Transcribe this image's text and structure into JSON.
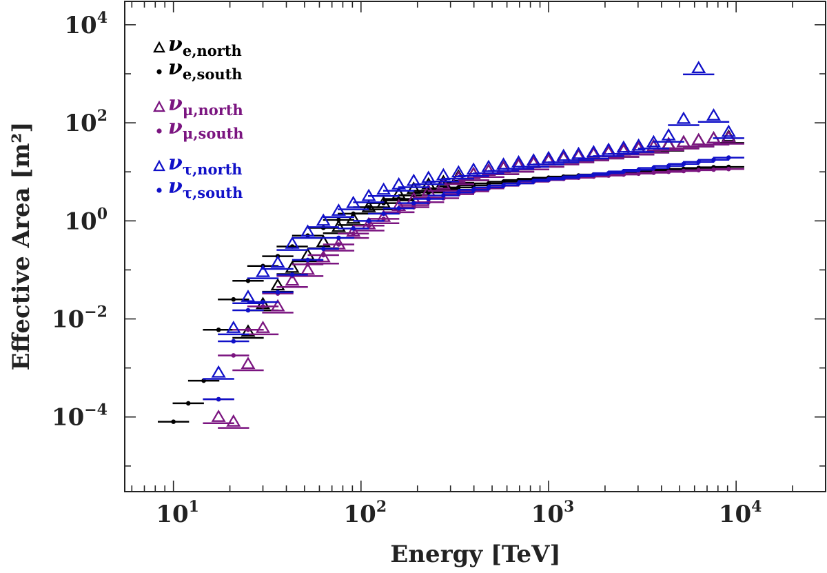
{
  "chart_data": {
    "type": "scatter",
    "title": "",
    "xlabel": "Energy [TeV]",
    "ylabel": "Effective Area [m²]",
    "xscale": "log",
    "yscale": "log",
    "xlim": [
      5.5,
      30000
    ],
    "ylim": [
      3e-06,
      30000
    ],
    "grid": false,
    "legend_position": "top-left",
    "x_ticks": [
      {
        "value": 10,
        "base": "10",
        "exp": "1"
      },
      {
        "value": 100,
        "base": "10",
        "exp": "2"
      },
      {
        "value": 1000,
        "base": "10",
        "exp": "3"
      },
      {
        "value": 10000,
        "base": "10",
        "exp": "4"
      }
    ],
    "y_ticks": [
      {
        "value": 0.0001,
        "base": "10",
        "exp": "−4"
      },
      {
        "value": 0.01,
        "base": "10",
        "exp": "−2"
      },
      {
        "value": 1,
        "base": "10",
        "exp": "0"
      },
      {
        "value": 100,
        "base": "10",
        "exp": "2"
      },
      {
        "value": 10000,
        "base": "10",
        "exp": "4"
      }
    ],
    "series": [
      {
        "name": "ν_e,north",
        "label_main": "ν",
        "label_sub": "e,north",
        "marker": "triangle",
        "color": "#000000",
        "x": [
          25,
          30,
          36,
          43,
          52,
          63,
          76,
          91,
          110,
          132,
          159,
          191,
          229,
          275,
          331,
          398,
          479,
          575,
          692,
          832,
          1000,
          1202,
          1445,
          1738,
          2089,
          2512,
          3020,
          3631,
          4365,
          5248,
          6310,
          7586,
          9120
        ],
        "y": [
          0.0055,
          0.02,
          0.048,
          0.11,
          0.2,
          0.37,
          0.75,
          1.1,
          1.9,
          2.3,
          3.5,
          4.5,
          5.5,
          6.2,
          8.0,
          9.0,
          10.5,
          12.0,
          13.5,
          15.0,
          17.0,
          19.0,
          21.0,
          23.0,
          25.0,
          27.0,
          30.0,
          33.0,
          36.0,
          40.0,
          44.0,
          48.0,
          52.0
        ]
      },
      {
        "name": "ν_e,south",
        "label_main": "ν",
        "label_sub": "e,south",
        "marker": "dot",
        "color": "#000000",
        "x": [
          10,
          12,
          14.5,
          17.4,
          20.9,
          25,
          30,
          36,
          43,
          52,
          63,
          76,
          91,
          110,
          132,
          159,
          191,
          229,
          275,
          331,
          398,
          479,
          575,
          692,
          832,
          1000,
          1202,
          1445,
          1738,
          2089,
          2512,
          3020,
          3631,
          4365,
          5248,
          6310,
          7586,
          9120
        ],
        "y": [
          8e-05,
          0.00019,
          0.00055,
          0.006,
          0.025,
          0.06,
          0.12,
          0.19,
          0.3,
          0.5,
          0.72,
          1.05,
          1.4,
          1.9,
          2.3,
          2.8,
          3.3,
          3.8,
          4.3,
          4.8,
          5.3,
          5.8,
          6.3,
          6.8,
          7.2,
          7.6,
          8.0,
          8.4,
          8.8,
          9.2,
          9.6,
          10.0,
          10.5,
          11.0,
          11.5,
          12.0,
          12.4,
          12.6
        ]
      },
      {
        "name": "ν_μ,north",
        "label_main": "ν",
        "label_sub": "μ,north",
        "marker": "triangle",
        "color": "#7b1580",
        "x": [
          17.4,
          20.9,
          25,
          30,
          36,
          43,
          52,
          63,
          76,
          91,
          110,
          132,
          159,
          191,
          229,
          275,
          331,
          398,
          479,
          575,
          692,
          832,
          1000,
          1202,
          1445,
          1738,
          2089,
          2512,
          3020,
          3631,
          4365,
          5248,
          6310,
          7586,
          9120
        ],
        "y": [
          0.0001,
          8e-05,
          0.0012,
          0.0065,
          0.018,
          0.06,
          0.1,
          0.18,
          0.33,
          0.6,
          0.85,
          1.2,
          2.0,
          2.8,
          4.0,
          5.5,
          7.5,
          9.0,
          10.5,
          12.0,
          13.5,
          15.0,
          17.0,
          19.0,
          21.0,
          23.0,
          25.0,
          27.0,
          30.0,
          33.0,
          37.0,
          40.0,
          44.0,
          48.0,
          50.0
        ]
      },
      {
        "name": "ν_μ,south",
        "label_main": "ν",
        "label_sub": "μ,south",
        "marker": "dot",
        "color": "#7b1580",
        "x": [
          17.4,
          20.9,
          25,
          30,
          36,
          43,
          52,
          63,
          76,
          91,
          110,
          132,
          159,
          191,
          229,
          275,
          331,
          398,
          479,
          575,
          692,
          832,
          1000,
          1202,
          1445,
          1738,
          2089,
          2512,
          3020,
          3631,
          4365,
          5248,
          6310,
          7586,
          9120
        ],
        "y": [
          0.00023,
          0.0018,
          0.006,
          0.018,
          0.033,
          0.075,
          0.13,
          0.2,
          0.33,
          0.55,
          0.8,
          1.1,
          1.5,
          1.9,
          2.4,
          2.9,
          3.5,
          4.0,
          4.6,
          5.2,
          5.8,
          6.3,
          6.8,
          7.2,
          7.6,
          8.0,
          8.4,
          8.8,
          9.2,
          9.6,
          10.0,
          10.4,
          10.8,
          11.1,
          11.4
        ]
      },
      {
        "name": "ν_τ,north",
        "label_main": "ν",
        "label_sub": "τ,north",
        "marker": "triangle",
        "color": "#1010c8",
        "x": [
          17.4,
          20.9,
          25,
          30,
          36,
          43,
          52,
          63,
          76,
          91,
          110,
          132,
          159,
          191,
          229,
          275,
          331,
          398,
          479,
          575,
          692,
          832,
          1000,
          1202,
          1445,
          1738,
          2089,
          2512,
          3020,
          3631,
          4365,
          5248,
          6310,
          7586,
          9120
        ],
        "y": [
          0.0008,
          0.0065,
          0.028,
          0.09,
          0.14,
          0.34,
          0.6,
          1.0,
          1.6,
          2.3,
          3.2,
          4.3,
          5.5,
          6.5,
          7.5,
          8.5,
          9.7,
          11.0,
          12.5,
          14.0,
          15.5,
          17.0,
          19.0,
          21.0,
          23.0,
          25.0,
          28.0,
          31.0,
          34.0,
          40.0,
          55.0,
          120.0,
          1300.0,
          140.0,
          65.0
        ]
      },
      {
        "name": "ν_τ,south",
        "label_main": "ν",
        "label_sub": "τ,south",
        "marker": "dot",
        "color": "#1010c8",
        "x": [
          17.4,
          20.9,
          25,
          30,
          36,
          43,
          52,
          63,
          76,
          91,
          110,
          132,
          159,
          191,
          229,
          275,
          331,
          398,
          479,
          575,
          692,
          832,
          1000,
          1202,
          1445,
          1738,
          2089,
          2512,
          3020,
          3631,
          4365,
          5248,
          6310,
          7586,
          9120
        ],
        "y": [
          0.00023,
          0.0035,
          0.015,
          0.022,
          0.035,
          0.08,
          0.16,
          0.27,
          0.45,
          0.7,
          1.0,
          1.4,
          1.8,
          2.3,
          2.8,
          3.3,
          3.8,
          4.3,
          4.8,
          5.3,
          5.8,
          6.5,
          7.0,
          7.5,
          8.1,
          8.7,
          9.4,
          10.2,
          11.0,
          12.0,
          13.2,
          14.5,
          16.0,
          17.6,
          19.5
        ]
      }
    ]
  }
}
